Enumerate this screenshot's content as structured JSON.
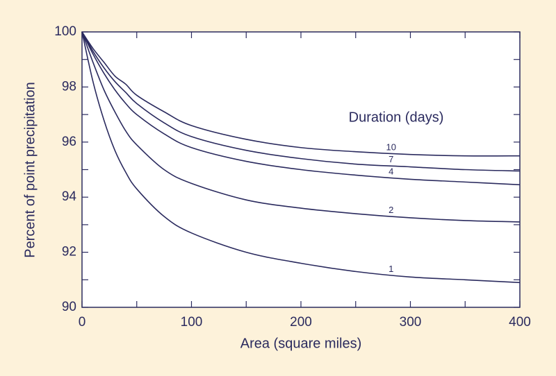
{
  "chart_data": {
    "type": "line",
    "annotation": "Duration (days)",
    "x_label": "Area (square miles)",
    "y_label": "Percent of point precipitation",
    "x": [
      0,
      10,
      20,
      30,
      40,
      50,
      75,
      100,
      150,
      200,
      250,
      300,
      350,
      400
    ],
    "series": [
      {
        "name": "1",
        "color": "#2a2a5e",
        "values": [
          100,
          98.2,
          96.8,
          95.7,
          94.9,
          94.3,
          93.3,
          92.7,
          92.0,
          91.6,
          91.3,
          91.1,
          91.0,
          90.9
        ]
      },
      {
        "name": "2",
        "color": "#2a2a5e",
        "values": [
          100,
          98.9,
          97.9,
          97.1,
          96.4,
          95.9,
          95.0,
          94.5,
          93.9,
          93.6,
          93.4,
          93.25,
          93.15,
          93.1
        ]
      },
      {
        "name": "4",
        "color": "#2a2a5e",
        "values": [
          100,
          99.2,
          98.5,
          97.9,
          97.4,
          97.0,
          96.3,
          95.8,
          95.3,
          95.0,
          94.8,
          94.65,
          94.55,
          94.45
        ]
      },
      {
        "name": "7",
        "color": "#2a2a5e",
        "values": [
          100,
          99.3,
          98.7,
          98.2,
          97.8,
          97.4,
          96.7,
          96.2,
          95.7,
          95.4,
          95.2,
          95.1,
          95.0,
          94.95
        ]
      },
      {
        "name": "10",
        "color": "#2a2a5e",
        "values": [
          100,
          99.4,
          98.9,
          98.4,
          98.1,
          97.7,
          97.1,
          96.6,
          96.1,
          95.8,
          95.65,
          95.55,
          95.5,
          95.5
        ]
      }
    ],
    "xlim": [
      0,
      400
    ],
    "ylim": [
      90,
      100
    ],
    "xticks": [
      0,
      100,
      200,
      300,
      400
    ],
    "xticks_minor": [
      50,
      150,
      250,
      350
    ],
    "yticks": [
      90,
      92,
      94,
      96,
      98,
      100
    ],
    "yticks_minor": [
      91,
      93,
      95,
      97,
      99
    ],
    "grid": false
  }
}
